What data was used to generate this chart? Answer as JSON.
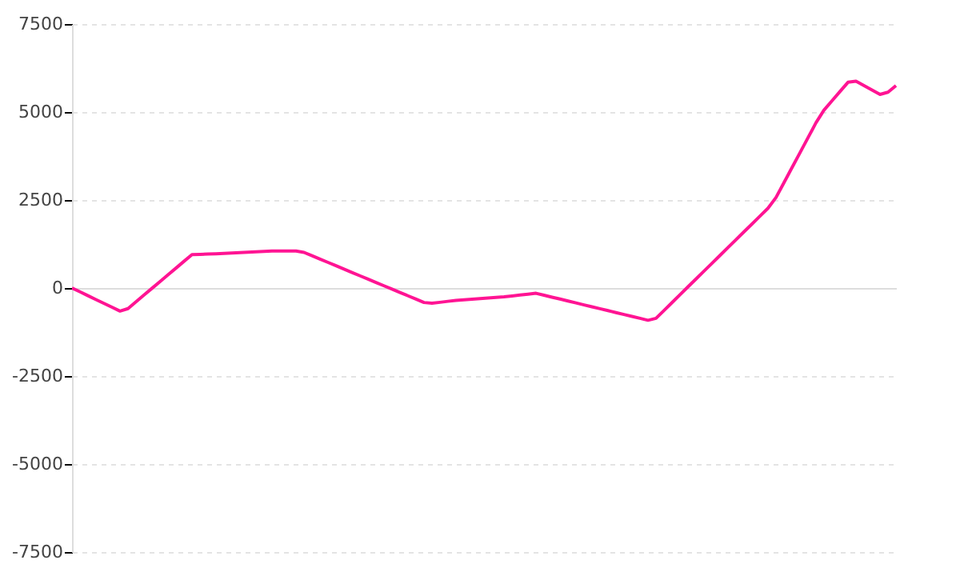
{
  "chart_data": {
    "type": "line",
    "categories": [
      null,
      null,
      null,
      null,
      null,
      null,
      null,
      null,
      null,
      null,
      null,
      null,
      null,
      null,
      null,
      null,
      null,
      null,
      null,
      null,
      null,
      null,
      null,
      null,
      null,
      null,
      null,
      null,
      null,
      null,
      null,
      null,
      null,
      null,
      null,
      null,
      null,
      null,
      null,
      null,
      null,
      null,
      null,
      null,
      null,
      null,
      null,
      null,
      null,
      null,
      null,
      null,
      null,
      null,
      null,
      null,
      null,
      null,
      null,
      null,
      null,
      null,
      null,
      null,
      null,
      null,
      null,
      null,
      null,
      null,
      null,
      null,
      null,
      null,
      null,
      null,
      null,
      null,
      null,
      null,
      null,
      null,
      null,
      null,
      null,
      null,
      null,
      null,
      null,
      null,
      null,
      null,
      null,
      null,
      null,
      null,
      null,
      null,
      null,
      null,
      null,
      null,
      null,
      null
    ],
    "series": [
      {
        "color": "#ff1493",
        "values": [
          0,
          -109,
          -219,
          -328,
          -438,
          -547,
          -656,
          -585,
          -393,
          -201,
          -9,
          183,
          375,
          566,
          758,
          950,
          957,
          965,
          972,
          982,
          993,
          1005,
          1016,
          1027,
          1039,
          1050,
          1050,
          1050,
          1050,
          1012,
          917,
          822,
          727,
          632,
          537,
          442,
          347,
          253,
          158,
          63,
          -32,
          -127,
          -222,
          -317,
          -412,
          -433,
          -406,
          -378,
          -350,
          -333,
          -317,
          -300,
          -283,
          -267,
          -250,
          -225,
          -200,
          -175,
          -150,
          -205,
          -260,
          -314,
          -369,
          -424,
          -479,
          -534,
          -589,
          -643,
          -698,
          -753,
          -808,
          -862,
          -917,
          -861,
          -638,
          -414,
          -191,
          33,
          256,
          479,
          703,
          926,
          1149,
          1373,
          1596,
          1819,
          2043,
          2266,
          2570,
          2995,
          3420,
          3845,
          4270,
          4695,
          5055,
          5318,
          5582,
          5845,
          5875,
          5750,
          5625,
          5500,
          5563,
          5750
        ]
      }
    ],
    "ylim": [
      -7500,
      7500
    ],
    "yticks": [
      -7500,
      -5000,
      -2500,
      0,
      2500,
      5000,
      7500
    ],
    "grid": "y",
    "tick_labels": "y",
    "line_style": "solid",
    "marker": "none"
  }
}
